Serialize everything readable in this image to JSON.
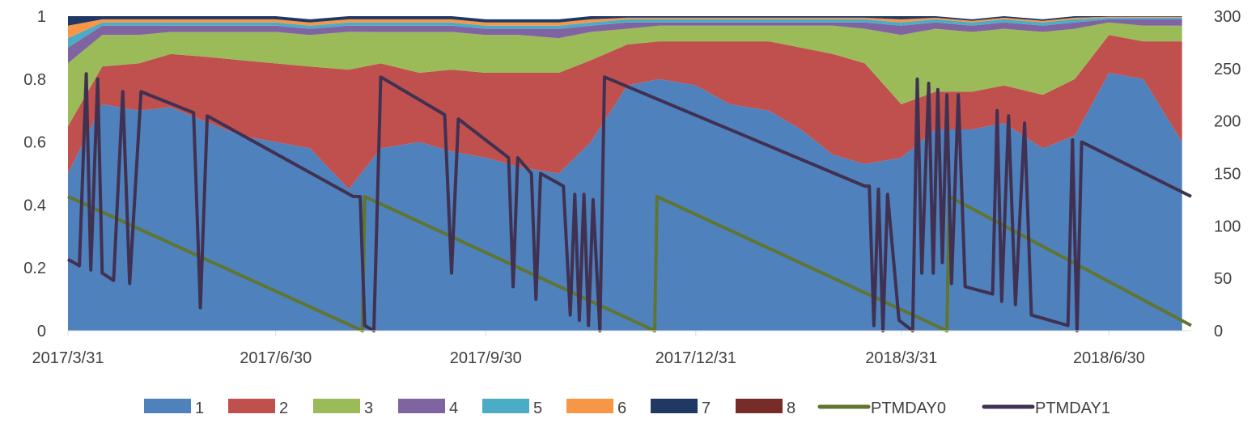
{
  "chart_data": {
    "type": "area",
    "x_dates": [
      "2017/3/31",
      "2017/4/15",
      "2017/5/1",
      "2017/5/15",
      "2017/6/1",
      "2017/6/15",
      "2017/6/30",
      "2017/7/15",
      "2017/8/1",
      "2017/8/15",
      "2017/9/1",
      "2017/9/15",
      "2017/9/30",
      "2017/10/15",
      "2017/11/1",
      "2017/11/15",
      "2017/12/1",
      "2017/12/15",
      "2017/12/31",
      "2018/1/15",
      "2018/2/1",
      "2018/2/15",
      "2018/3/1",
      "2018/3/15",
      "2018/3/31",
      "2018/4/15",
      "2018/5/1",
      "2018/5/15",
      "2018/6/1",
      "2018/6/15",
      "2018/6/30",
      "2018/7/15",
      "2018/8/1"
    ],
    "series": [
      {
        "name": "1",
        "color": "#4f81bd",
        "values": [
          0.5,
          0.72,
          0.7,
          0.71,
          0.66,
          0.62,
          0.6,
          0.58,
          0.45,
          0.58,
          0.6,
          0.57,
          0.55,
          0.52,
          0.5,
          0.6,
          0.78,
          0.8,
          0.78,
          0.72,
          0.7,
          0.64,
          0.56,
          0.53,
          0.55,
          0.64,
          0.64,
          0.66,
          0.58,
          0.62,
          0.82,
          0.8,
          0.6
        ]
      },
      {
        "name": "2",
        "color": "#c0504d",
        "values": [
          0.15,
          0.12,
          0.15,
          0.17,
          0.21,
          0.24,
          0.25,
          0.26,
          0.38,
          0.27,
          0.22,
          0.26,
          0.27,
          0.3,
          0.32,
          0.26,
          0.13,
          0.12,
          0.14,
          0.2,
          0.22,
          0.26,
          0.32,
          0.32,
          0.17,
          0.12,
          0.12,
          0.12,
          0.17,
          0.18,
          0.12,
          0.12,
          0.32
        ]
      },
      {
        "name": "3",
        "color": "#9bbb59",
        "values": [
          0.2,
          0.1,
          0.09,
          0.07,
          0.08,
          0.09,
          0.1,
          0.1,
          0.12,
          0.1,
          0.13,
          0.12,
          0.12,
          0.12,
          0.11,
          0.09,
          0.05,
          0.05,
          0.05,
          0.05,
          0.05,
          0.07,
          0.09,
          0.11,
          0.22,
          0.2,
          0.19,
          0.18,
          0.2,
          0.16,
          0.04,
          0.05,
          0.05
        ]
      },
      {
        "name": "4",
        "color": "#8064a2",
        "values": [
          0.05,
          0.03,
          0.03,
          0.02,
          0.02,
          0.02,
          0.02,
          0.02,
          0.02,
          0.02,
          0.02,
          0.02,
          0.02,
          0.02,
          0.03,
          0.02,
          0.02,
          0.01,
          0.01,
          0.01,
          0.01,
          0.01,
          0.01,
          0.02,
          0.03,
          0.02,
          0.02,
          0.02,
          0.02,
          0.02,
          0.01,
          0.02,
          0.02
        ]
      },
      {
        "name": "5",
        "color": "#4bacc6",
        "values": [
          0.03,
          0.01,
          0.01,
          0.01,
          0.01,
          0.01,
          0.01,
          0.01,
          0.01,
          0.01,
          0.01,
          0.01,
          0.01,
          0.01,
          0.01,
          0.01,
          0.01,
          0.01,
          0.01,
          0.01,
          0.01,
          0.01,
          0.01,
          0.01,
          0.01,
          0.01,
          0.01,
          0.01,
          0.01,
          0.01,
          0.005,
          0.005,
          0.005
        ]
      },
      {
        "name": "6",
        "color": "#f79646",
        "values": [
          0.04,
          0.01,
          0.01,
          0.01,
          0.01,
          0.01,
          0.01,
          0.01,
          0.01,
          0.01,
          0.01,
          0.01,
          0.01,
          0.01,
          0.01,
          0.01,
          0.005,
          0.005,
          0.005,
          0.005,
          0.005,
          0.005,
          0.005,
          0.005,
          0.01,
          0.005,
          0.005,
          0.005,
          0.005,
          0.005,
          0.003,
          0.003,
          0.003
        ]
      },
      {
        "name": "7",
        "color": "#1f3864",
        "values": [
          0.03,
          0.01,
          0.01,
          0.01,
          0.01,
          0.01,
          0.01,
          0.01,
          0.01,
          0.01,
          0.01,
          0.01,
          0.01,
          0.01,
          0.01,
          0.01,
          0.005,
          0.005,
          0.005,
          0.005,
          0.005,
          0.005,
          0.005,
          0.005,
          0.01,
          0.005,
          0.005,
          0.005,
          0.005,
          0.005,
          0.002,
          0.002,
          0.002
        ]
      },
      {
        "name": "8",
        "color": "#772c2a",
        "values": [
          0.0,
          0.0,
          0.0,
          0.0,
          0.0,
          0.0,
          0.0,
          0.0,
          0.0,
          0.0,
          0.0,
          0.0,
          0.0,
          0.0,
          0.0,
          0.0,
          0.0,
          0.0,
          0.0,
          0.0,
          0.0,
          0.0,
          0.0,
          0.0,
          0.0,
          0.0,
          0.0,
          0.0,
          0.0,
          0.0,
          0.0,
          0.0,
          0.0
        ]
      }
    ],
    "lines": [
      {
        "name": "PTMDAY0",
        "color": "#5f7530",
        "axis": "right",
        "points": [
          [
            "2017/3/31",
            128
          ],
          [
            "2017/8/7",
            0
          ],
          [
            "2017/8/8",
            128
          ],
          [
            "2017/12/13",
            0
          ],
          [
            "2017/12/14",
            128
          ],
          [
            "2018/4/20",
            0
          ],
          [
            "2018/4/21",
            128
          ],
          [
            "2018/8/5",
            5
          ]
        ]
      },
      {
        "name": "PTMDAY1",
        "color": "#403152",
        "axis": "right",
        "points": [
          [
            "2017/3/31",
            68
          ],
          [
            "2017/4/5",
            62
          ],
          [
            "2017/4/8",
            245
          ],
          [
            "2017/4/10",
            58
          ],
          [
            "2017/4/13",
            240
          ],
          [
            "2017/4/15",
            55
          ],
          [
            "2017/4/20",
            48
          ],
          [
            "2017/4/24",
            228
          ],
          [
            "2017/4/27",
            45
          ],
          [
            "2017/5/2",
            228
          ],
          [
            "2017/5/25",
            208
          ],
          [
            "2017/5/28",
            22
          ],
          [
            "2017/5/31",
            205
          ],
          [
            "2017/8/3",
            128
          ],
          [
            "2017/8/6",
            128
          ],
          [
            "2017/8/8",
            5
          ],
          [
            "2017/8/12",
            0
          ],
          [
            "2017/8/15",
            242
          ],
          [
            "2017/9/12",
            206
          ],
          [
            "2017/9/15",
            55
          ],
          [
            "2017/9/18",
            202
          ],
          [
            "2017/10/10",
            165
          ],
          [
            "2017/10/12",
            42
          ],
          [
            "2017/10/14",
            165
          ],
          [
            "2017/10/20",
            150
          ],
          [
            "2017/10/22",
            30
          ],
          [
            "2017/10/24",
            150
          ],
          [
            "2017/11/3",
            138
          ],
          [
            "2017/11/6",
            15
          ],
          [
            "2017/11/8",
            130
          ],
          [
            "2017/11/10",
            10
          ],
          [
            "2017/11/12",
            130
          ],
          [
            "2017/11/14",
            5
          ],
          [
            "2017/11/16",
            125
          ],
          [
            "2017/11/19",
            0
          ],
          [
            "2017/11/21",
            242
          ],
          [
            "2018/3/15",
            138
          ],
          [
            "2018/3/17",
            138
          ],
          [
            "2018/3/19",
            5
          ],
          [
            "2018/3/21",
            135
          ],
          [
            "2018/3/23",
            0
          ],
          [
            "2018/3/25",
            130
          ],
          [
            "2018/3/30",
            10
          ],
          [
            "2018/4/5",
            0
          ],
          [
            "2018/4/7",
            240
          ],
          [
            "2018/4/9",
            55
          ],
          [
            "2018/4/12",
            236
          ],
          [
            "2018/4/14",
            55
          ],
          [
            "2018/4/16",
            230
          ],
          [
            "2018/4/18",
            65
          ],
          [
            "2018/4/20",
            225
          ],
          [
            "2018/4/22",
            45
          ],
          [
            "2018/4/25",
            225
          ],
          [
            "2018/4/28",
            42
          ],
          [
            "2018/5/10",
            35
          ],
          [
            "2018/5/12",
            210
          ],
          [
            "2018/5/14",
            28
          ],
          [
            "2018/5/17",
            205
          ],
          [
            "2018/5/20",
            25
          ],
          [
            "2018/5/24",
            198
          ],
          [
            "2018/5/27",
            15
          ],
          [
            "2018/6/12",
            5
          ],
          [
            "2018/6/14",
            182
          ],
          [
            "2018/6/16",
            0
          ],
          [
            "2018/6/18",
            180
          ],
          [
            "2018/8/5",
            128
          ]
        ]
      }
    ],
    "x_axis_ticks": [
      "2017/3/31",
      "2017/6/30",
      "2017/9/30",
      "2017/12/31",
      "2018/3/31",
      "2018/6/30"
    ],
    "y_left_ticks": [
      "0",
      "0.2",
      "0.4",
      "0.6",
      "0.8",
      "1"
    ],
    "y_right_ticks": [
      "0",
      "50",
      "100",
      "150",
      "200",
      "250",
      "300"
    ],
    "ylim_left": [
      0,
      1
    ],
    "ylim_right": [
      0,
      300
    ],
    "xlim": [
      "2017/3/31",
      "2018/8/5"
    ],
    "legend_position": "bottom",
    "grid": false
  }
}
